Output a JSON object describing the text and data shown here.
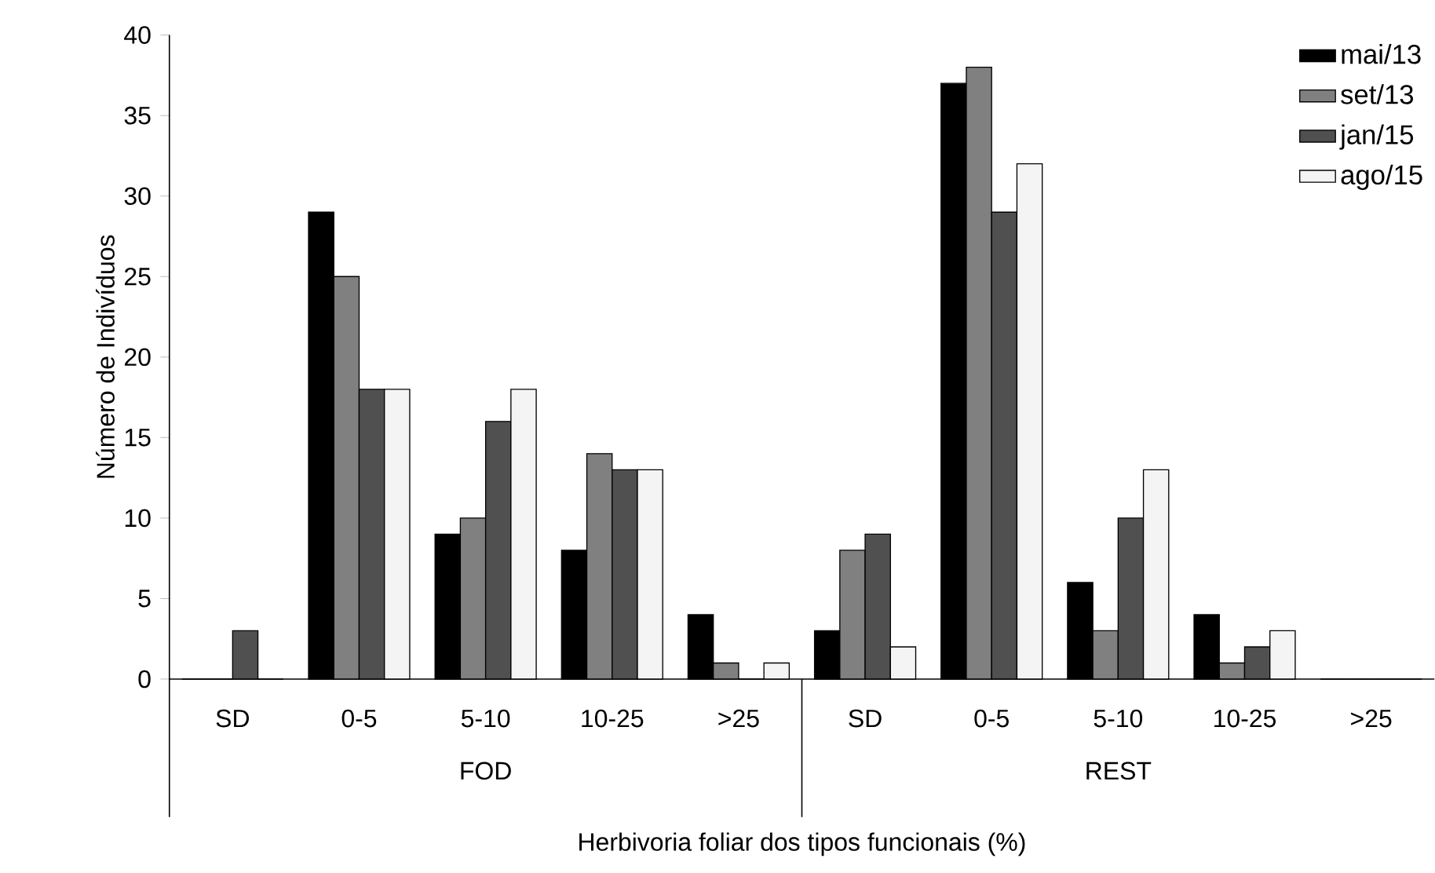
{
  "chart_data": {
    "type": "bar",
    "xlabel": "Herbivoria foliar dos tipos funcionais (%)",
    "ylabel": "Número de Indivíduos",
    "categories": [
      "SD",
      "0-5",
      "5-10",
      "10-25",
      ">25",
      "SD",
      "0-5",
      "5-10",
      "10-25",
      ">25"
    ],
    "series": [
      {
        "name": "mai/13",
        "color": "#000000",
        "values": [
          0,
          29,
          9,
          8,
          4,
          3,
          37,
          6,
          4,
          0
        ]
      },
      {
        "name": "set/13",
        "color": "#808080",
        "values": [
          0,
          25,
          10,
          14,
          1,
          8,
          38,
          3,
          1,
          0
        ]
      },
      {
        "name": "jan/15",
        "color": "#505050",
        "values": [
          3,
          18,
          16,
          13,
          0,
          9,
          29,
          10,
          2,
          0
        ]
      },
      {
        "name": "ago/15",
        "color": "#f4f4f4",
        "values": [
          0,
          18,
          18,
          13,
          1,
          2,
          32,
          13,
          3,
          0
        ]
      }
    ],
    "annotations": [
      "FOD",
      "REST"
    ],
    "ylim": [
      0,
      40
    ],
    "yticks": [
      0,
      5,
      10,
      15,
      20,
      25,
      30,
      35,
      40
    ],
    "grid": false,
    "legend": "top right"
  }
}
